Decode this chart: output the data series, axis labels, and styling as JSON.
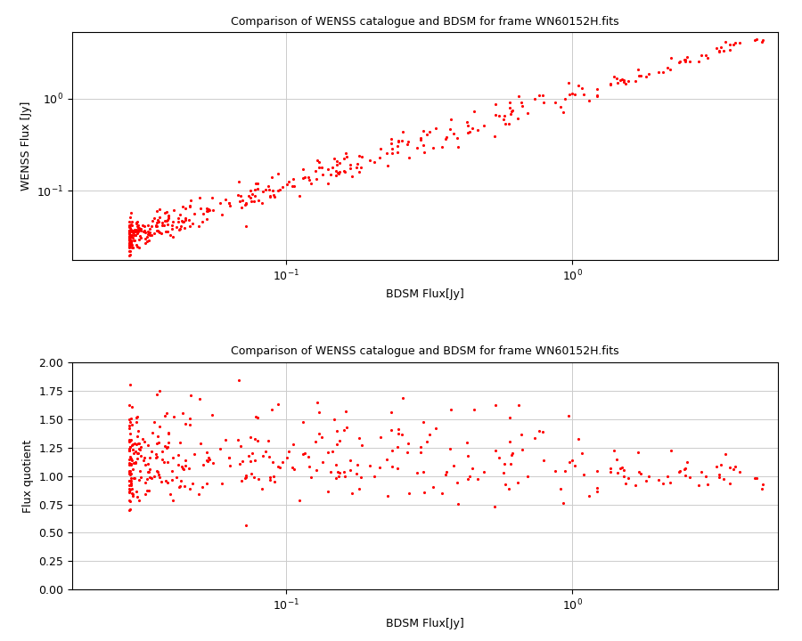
{
  "title": "Comparison of WENSS catalogue and BDSM for frame WN60152H.fits",
  "xlabel_top": "BDSM Flux[Jy]",
  "ylabel_top": "WENSS Flux [Jy]",
  "xlabel_bot": "BDSM Flux[Jy]",
  "ylabel_bot": "Flux quotient",
  "point_color": "#ff0000",
  "point_size": 5,
  "seed": 42,
  "n_points": 400,
  "bdsm_log_min": -1.55,
  "bdsm_log_max": 0.72,
  "quotient_mean_low": 0.06,
  "quotient_std_low": 0.055,
  "quotient_mean_high": 0.005,
  "quotient_std_high": 0.02,
  "background_color": "#ffffff",
  "grid_color": "#cccccc",
  "title_fontsize": 9,
  "label_fontsize": 9,
  "tick_fontsize": 9
}
